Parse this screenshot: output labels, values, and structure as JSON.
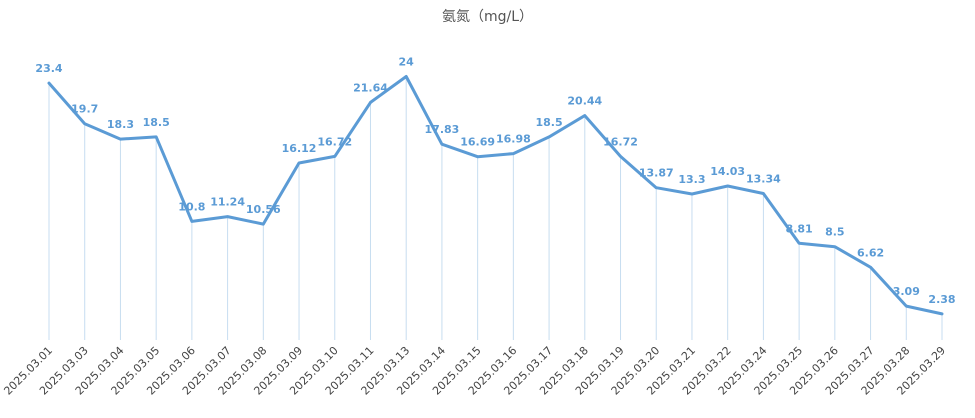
{
  "chart_data": {
    "type": "line",
    "title": "氨氮（mg/L）",
    "xlabel": "",
    "ylabel": "",
    "ylim": [
      0,
      25
    ],
    "grid": false,
    "legend": "none",
    "drop_lines": true,
    "colors": {
      "line": "#5b9bd5",
      "label": "#5b9bd5",
      "drop_line": "#c7ddf0"
    },
    "categories": [
      "2025.03.01",
      "2025.03.03",
      "2025.03.04",
      "2025.03.05",
      "2025.03.06",
      "2025.03.07",
      "2025.03.08",
      "2025.03.09",
      "2025.03.10",
      "2025.03.11",
      "2025.03.13",
      "2025.03.14",
      "2025.03.15",
      "2025.03.16",
      "2025.03.17",
      "2025.03.18",
      "2025.03.19",
      "2025.03.20",
      "2025.03.21",
      "2025.03.22",
      "2025.03.24",
      "2025.03.25",
      "2025.03.26",
      "2025.03.27",
      "2025.03.28",
      "2025.03.29"
    ],
    "series": [
      {
        "values": [
          23.4,
          19.7,
          18.3,
          18.5,
          10.8,
          11.24,
          10.56,
          16.12,
          16.72,
          21.64,
          24,
          17.83,
          16.69,
          16.98,
          18.5,
          20.44,
          16.72,
          13.87,
          13.3,
          14.03,
          13.34,
          8.81,
          8.5,
          6.62,
          3.09,
          2.38
        ]
      }
    ]
  }
}
